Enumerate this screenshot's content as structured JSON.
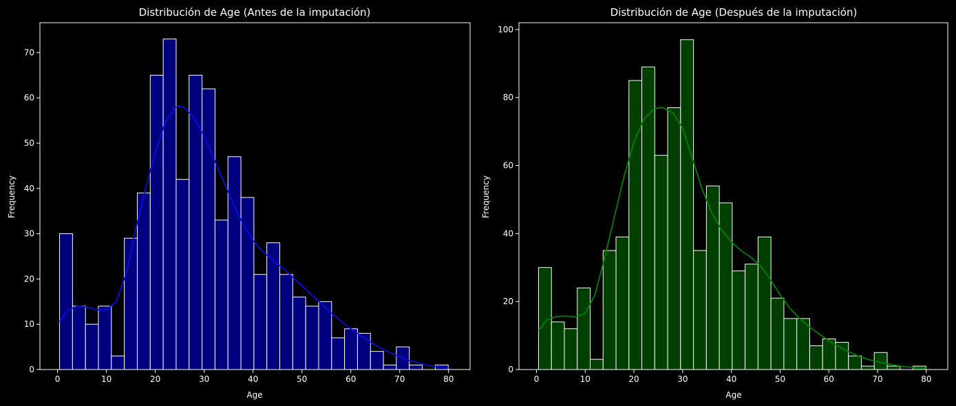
{
  "chart_data": [
    {
      "type": "bar",
      "title": "Distribución de Age (Antes de la imputación)",
      "xlabel": "Age",
      "ylabel": "Frequency",
      "xlim": [
        -3.6,
        84.4
      ],
      "ylim": [
        0,
        76.6
      ],
      "xticks": [
        0,
        10,
        20,
        30,
        40,
        50,
        60,
        70,
        80
      ],
      "yticks": [
        0,
        10,
        20,
        30,
        40,
        50,
        60,
        70
      ],
      "bin_edges": [
        0.42,
        3.07,
        5.72,
        8.37,
        11.02,
        13.67,
        16.32,
        18.97,
        21.62,
        24.27,
        26.92,
        29.57,
        32.22,
        34.87,
        37.52,
        40.17,
        42.82,
        45.47,
        48.12,
        50.77,
        53.42,
        56.07,
        58.72,
        61.37,
        64.02,
        66.67,
        69.32,
        71.97,
        74.62,
        77.27,
        79.92
      ],
      "values": [
        30,
        14,
        10,
        14,
        3,
        29,
        39,
        65,
        73,
        42,
        65,
        62,
        33,
        47,
        38,
        21,
        28,
        21,
        16,
        14,
        15,
        7,
        9,
        8,
        4,
        1,
        5,
        1,
        0,
        1
      ],
      "kde": {
        "x": [
          0.42,
          2,
          4,
          6,
          8,
          10,
          12,
          14,
          16,
          18,
          20,
          22,
          24,
          25,
          26,
          28,
          30,
          32,
          34,
          36,
          38,
          40,
          42,
          44,
          46,
          48,
          50,
          52,
          54,
          56,
          58,
          60,
          62,
          64,
          66,
          68,
          70,
          72,
          74,
          76,
          78,
          79.92
        ],
        "y": [
          10.6,
          13,
          14,
          13.8,
          13.2,
          13.2,
          15,
          21,
          31,
          40,
          48,
          54.5,
          57.8,
          58.2,
          57.8,
          55.5,
          51.5,
          46.5,
          41.5,
          36.5,
          32,
          28.5,
          26,
          24.3,
          22.5,
          20.5,
          18.5,
          16.5,
          14.5,
          12.5,
          10.7,
          9,
          7.5,
          6.1,
          4.8,
          3.7,
          2.8,
          2,
          1.4,
          0.9,
          0.6,
          0.4
        ]
      },
      "bar_color": "#00007f",
      "line_color": "#0a0ae6",
      "edge_color": "#ffffff",
      "background": "#000000"
    },
    {
      "type": "bar",
      "title": "Distribución de Age (Después de la imputación)",
      "xlabel": "Age",
      "ylabel": "Frequency",
      "xlim": [
        -3.6,
        84.4
      ],
      "ylim": [
        0,
        102
      ],
      "xticks": [
        0,
        10,
        20,
        30,
        40,
        50,
        60,
        70,
        80
      ],
      "yticks": [
        0,
        20,
        40,
        60,
        80,
        100
      ],
      "bin_edges": [
        0.42,
        3.07,
        5.72,
        8.37,
        11.02,
        13.67,
        16.32,
        18.97,
        21.62,
        24.27,
        26.92,
        29.57,
        32.22,
        34.87,
        37.52,
        40.17,
        42.82,
        45.47,
        48.12,
        50.77,
        53.42,
        56.07,
        58.72,
        61.37,
        64.02,
        66.67,
        69.32,
        71.97,
        74.62,
        77.27,
        79.92
      ],
      "values": [
        30,
        14,
        12,
        24,
        3,
        35,
        39,
        85,
        89,
        63,
        77,
        97,
        35,
        54,
        49,
        29,
        31,
        39,
        21,
        15,
        15,
        7,
        9,
        8,
        4,
        1,
        5,
        1,
        0,
        1
      ],
      "kde": {
        "x": [
          0.42,
          2,
          4,
          6,
          8,
          10,
          12,
          14,
          16,
          18,
          20,
          22,
          24,
          25,
          26,
          28,
          30,
          32,
          34,
          36,
          38,
          40,
          42,
          44,
          46,
          48,
          50,
          52,
          54,
          56,
          58,
          60,
          62,
          64,
          66,
          68,
          70,
          72,
          74,
          76,
          78,
          79.92
        ],
        "y": [
          11.5,
          14.5,
          15.6,
          15.7,
          15.5,
          16.5,
          22,
          33,
          45,
          57,
          67,
          73.5,
          76.5,
          77,
          77,
          75.5,
          71,
          62,
          53,
          46,
          41,
          37.5,
          35,
          33,
          30.5,
          26.5,
          22,
          18,
          15,
          12.5,
          10.5,
          8.5,
          6.8,
          5.3,
          4,
          3,
          2.3,
          1.7,
          1.2,
          0.8,
          0.5,
          0.4
        ]
      },
      "bar_color": "#003f00",
      "line_color": "#008000",
      "edge_color": "#ffffff",
      "background": "#000000"
    }
  ]
}
